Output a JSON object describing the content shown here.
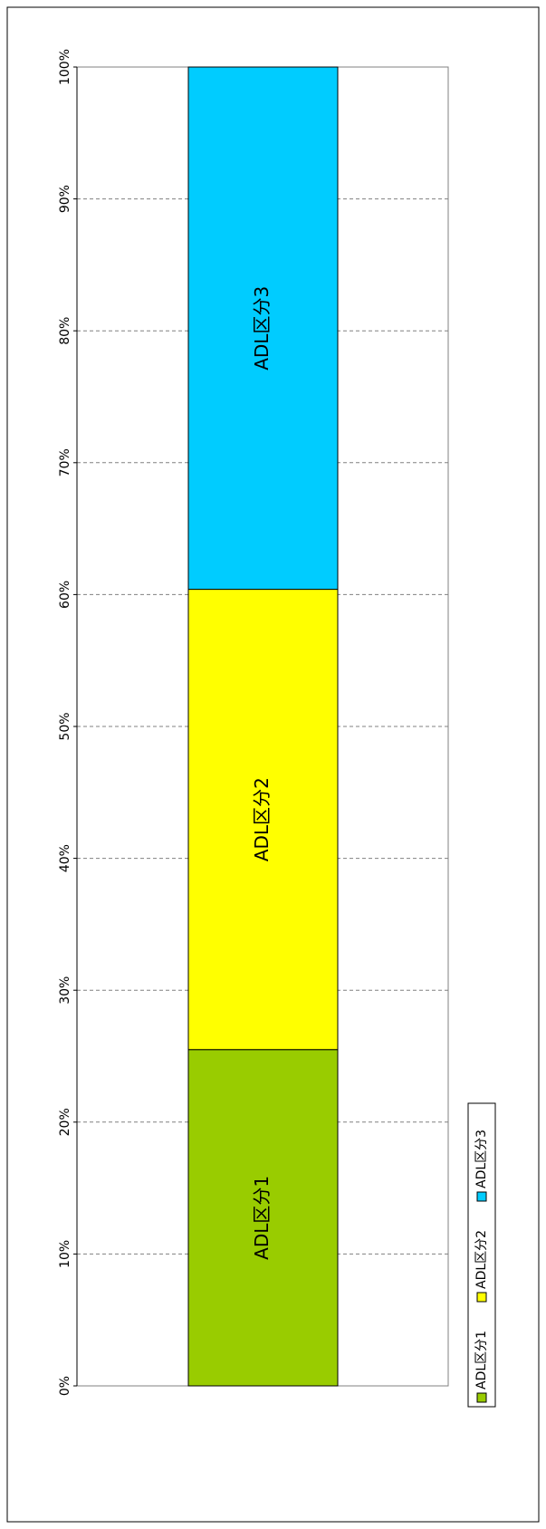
{
  "chart_data": {
    "type": "stacked_bar",
    "series": [
      {
        "name": "ADL区分1",
        "color": "#99cc00",
        "values": [
          25.5
        ]
      },
      {
        "name": "ADL区分2",
        "color": "#ffff00",
        "values": [
          34.9
        ]
      },
      {
        "name": "ADL区分3",
        "color": "#00ccff",
        "values": [
          39.6
        ]
      }
    ],
    "ylim": [
      0,
      100
    ],
    "yticks": [
      {
        "value": 0,
        "label": "0%"
      },
      {
        "value": 10,
        "label": "10%"
      },
      {
        "value": 20,
        "label": "20%"
      },
      {
        "value": 30,
        "label": "30%"
      },
      {
        "value": 40,
        "label": "40%"
      },
      {
        "value": 50,
        "label": "50%"
      },
      {
        "value": 60,
        "label": "60%"
      },
      {
        "value": 70,
        "label": "70%"
      },
      {
        "value": 80,
        "label": "80%"
      },
      {
        "value": 90,
        "label": "90%"
      },
      {
        "value": 100,
        "label": "100%"
      }
    ],
    "grid": true
  }
}
